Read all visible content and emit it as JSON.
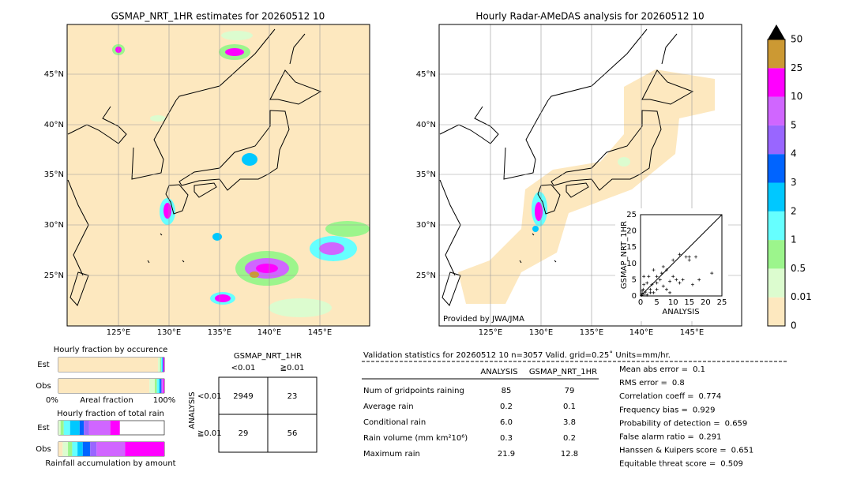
{
  "left_map": {
    "title": "GSMAP_NRT_1HR estimates for 20260512 10",
    "lat_labels": [
      "45°N",
      "40°N",
      "35°N",
      "30°N",
      "25°N"
    ],
    "lon_labels": [
      "125°E",
      "130°E",
      "135°E",
      "140°E",
      "145°E"
    ]
  },
  "right_map": {
    "title": "Hourly Radar-AMeDAS analysis for 20260512 10",
    "lat_labels": [
      "45°N",
      "40°N",
      "35°N",
      "30°N",
      "25°N"
    ],
    "lon_labels": [
      "125°E",
      "130°E",
      "135°E",
      "140°E",
      "145°E"
    ],
    "credit": "Provided by JWA/JMA"
  },
  "colorbar": {
    "labels": [
      "0",
      "0.01",
      "0.5",
      "1",
      "2",
      "3",
      "4",
      "5",
      "10",
      "25",
      "50"
    ],
    "colors": [
      "#fde8bf",
      "#dcfccf",
      "#9cf58c",
      "#66ffff",
      "#00c8ff",
      "#0064ff",
      "#9966ff",
      "#d066ff",
      "#ff00ff",
      "#cc9933"
    ]
  },
  "scatter": {
    "xlabel": "ANALYSIS",
    "ylabel": "GSMAP_NRT_1HR",
    "ticks": [
      "0",
      "5",
      "10",
      "15",
      "20",
      "25"
    ],
    "points": [
      [
        0.3,
        0.2
      ],
      [
        0.5,
        0.8
      ],
      [
        1,
        0.5
      ],
      [
        1.5,
        1.2
      ],
      [
        2,
        0.3
      ],
      [
        0.8,
        2
      ],
      [
        1,
        3.5
      ],
      [
        2,
        4
      ],
      [
        3,
        2
      ],
      [
        4,
        1
      ],
      [
        3.5,
        3.5
      ],
      [
        5,
        2
      ],
      [
        6,
        5
      ],
      [
        5,
        6
      ],
      [
        7,
        3
      ],
      [
        6.5,
        7
      ],
      [
        8,
        2
      ],
      [
        8,
        8
      ],
      [
        9,
        4.5
      ],
      [
        10,
        6
      ],
      [
        10,
        11
      ],
      [
        11,
        5
      ],
      [
        12,
        4
      ],
      [
        12,
        12.8
      ],
      [
        13,
        5
      ],
      [
        14,
        12
      ],
      [
        15,
        11
      ],
      [
        15,
        12
      ],
      [
        16,
        3.5
      ],
      [
        17,
        12
      ],
      [
        18,
        5
      ],
      [
        21.9,
        7
      ],
      [
        2.5,
        6
      ],
      [
        4,
        8
      ],
      [
        1,
        6
      ],
      [
        7,
        9
      ],
      [
        5,
        4
      ],
      [
        0.5,
        1.5
      ],
      [
        3,
        1
      ],
      [
        9,
        1
      ]
    ]
  },
  "occurrence": {
    "title": "Hourly fraction by occurence",
    "rows": [
      "Est",
      "Obs"
    ],
    "axis": [
      "0%",
      "Areal fraction",
      "100%"
    ],
    "widths": [
      [
        0.94,
        0.02,
        0.01,
        0.01,
        0.005,
        0.005,
        0,
        0,
        0.01,
        0
      ],
      [
        0.86,
        0.05,
        0.02,
        0.02,
        0.01,
        0.01,
        0.01,
        0.01,
        0.01,
        0
      ]
    ]
  },
  "amount": {
    "title": "Hourly fraction of total rain",
    "rows": [
      "Est",
      "Obs"
    ],
    "footer": "Rainfall accumulation by amount",
    "widths": [
      [
        0,
        0.02,
        0.03,
        0.06,
        0.09,
        0.04,
        0.05,
        0.2,
        0.09,
        0
      ],
      [
        0.04,
        0.05,
        0.04,
        0.05,
        0.05,
        0.07,
        0.06,
        0.27,
        0.37,
        0
      ]
    ]
  },
  "contingency": {
    "header": "GSMAP_NRT_1HR",
    "columns": [
      "<0.01",
      "≧0.01"
    ],
    "row_header": "ANALYSIS",
    "rows": [
      "<0.01",
      "≧0.01"
    ],
    "cells": [
      [
        "2949",
        "23"
      ],
      [
        "29",
        "56"
      ]
    ]
  },
  "validation": {
    "title": "Validation statistics for 20260512 10  n=3057 Valid. grid=0.25˚ Units=mm/hr.",
    "columns": [
      "ANALYSIS",
      "GSMAP_NRT_1HR"
    ],
    "rows": [
      [
        "Num of gridpoints raining",
        "85",
        "79"
      ],
      [
        "Average rain",
        "0.2",
        "0.1"
      ],
      [
        "Conditional rain",
        "6.0",
        "3.8"
      ],
      [
        "Rain volume (mm km²10⁶)",
        "0.3",
        "0.2"
      ],
      [
        "Maximum rain",
        "21.9",
        "12.8"
      ]
    ]
  },
  "scores": [
    [
      "Mean abs error =",
      "0.1"
    ],
    [
      "RMS error =",
      "0.8"
    ],
    [
      "Correlation coeff =",
      "0.774"
    ],
    [
      "Frequency bias =",
      "0.929"
    ],
    [
      "Probability of detection =",
      "0.659"
    ],
    [
      "False alarm ratio =",
      "0.291"
    ],
    [
      "Hanssen & Kuipers score =",
      "0.651"
    ],
    [
      "Equitable threat score =",
      "0.509"
    ]
  ]
}
